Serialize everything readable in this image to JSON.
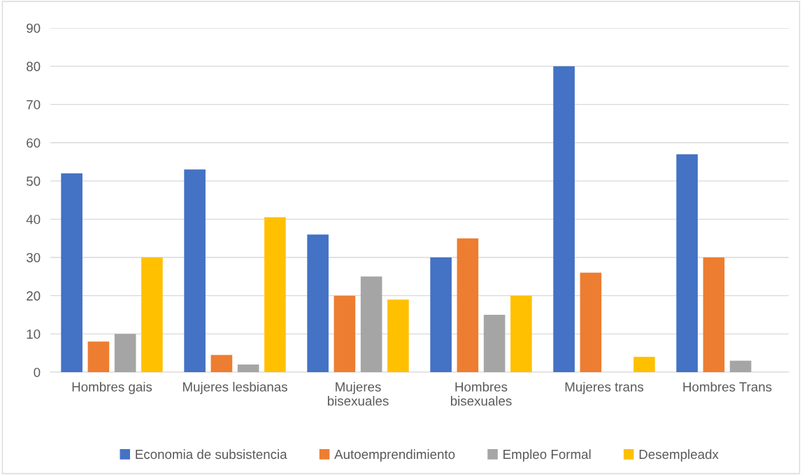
{
  "chart_data": {
    "type": "bar",
    "categories": [
      "Hombres gais",
      "Mujeres lesbianas",
      "Mujeres\nbisexuales",
      "Hombres\nbisexuales",
      "Mujeres trans",
      "Hombres Trans"
    ],
    "series": [
      {
        "name": "Economia de subsistencia",
        "color": "#4472c4",
        "values": [
          52,
          53,
          36,
          30,
          80,
          57
        ]
      },
      {
        "name": "Autoemprendimiento",
        "color": "#ed7d31",
        "values": [
          8,
          4.5,
          20,
          35,
          26,
          30
        ]
      },
      {
        "name": "Empleo Formal",
        "color": "#a5a5a5",
        "values": [
          10,
          2,
          25,
          15,
          0,
          3
        ]
      },
      {
        "name": "Desempleadx",
        "color": "#ffc000",
        "values": [
          30,
          40.5,
          19,
          20,
          4,
          0
        ]
      }
    ],
    "ylim": [
      0,
      90
    ],
    "yticks": [
      0,
      10,
      20,
      30,
      40,
      50,
      60,
      70,
      80,
      90
    ],
    "grid": "y",
    "legend": "bottom"
  }
}
